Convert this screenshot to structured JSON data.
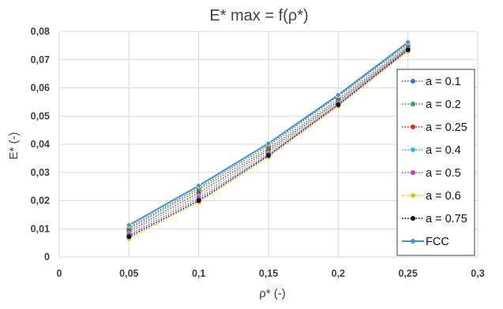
{
  "chart_data": {
    "type": "line",
    "title": "E* max = f(ρ*)",
    "xlabel": "ρ*  (-)",
    "ylabel": "E*  (-)",
    "xlim": [
      0,
      0.3
    ],
    "ylim": [
      0,
      0.08
    ],
    "grid": true,
    "legend_position": "right",
    "x_ticks": [
      {
        "value": 0,
        "label": "0"
      },
      {
        "value": 0.05,
        "label": "0,05"
      },
      {
        "value": 0.1,
        "label": "0,1"
      },
      {
        "value": 0.15,
        "label": "0,15"
      },
      {
        "value": 0.2,
        "label": "0,2"
      },
      {
        "value": 0.25,
        "label": "0,25"
      },
      {
        "value": 0.3,
        "label": "0,3"
      }
    ],
    "y_ticks": [
      {
        "value": 0,
        "label": "0"
      },
      {
        "value": 0.01,
        "label": "0,01"
      },
      {
        "value": 0.02,
        "label": "0,02"
      },
      {
        "value": 0.03,
        "label": "0,03"
      },
      {
        "value": 0.04,
        "label": "0,04"
      },
      {
        "value": 0.05,
        "label": "0,05"
      },
      {
        "value": 0.06,
        "label": "0,06"
      },
      {
        "value": 0.07,
        "label": "0,07"
      },
      {
        "value": 0.08,
        "label": "0,08"
      }
    ],
    "x": [
      0.05,
      0.1,
      0.15,
      0.2,
      0.25
    ],
    "series": [
      {
        "name": "a = 0.1",
        "color": "#4472c4",
        "dashed": true,
        "values": [
          0.0105,
          0.0245,
          0.0395,
          0.057,
          0.0755
        ]
      },
      {
        "name": "a = 0.2",
        "color": "#2fa84f",
        "dashed": true,
        "values": [
          0.01,
          0.0238,
          0.0385,
          0.056,
          0.0748
        ]
      },
      {
        "name": "a = 0.25",
        "color": "#e8281e",
        "dashed": true,
        "values": [
          0.0092,
          0.0228,
          0.0378,
          0.0553,
          0.0743
        ]
      },
      {
        "name": "a = 0.4",
        "color": "#33b5e5",
        "dashed": true,
        "values": [
          0.0085,
          0.0218,
          0.037,
          0.0548,
          0.074
        ]
      },
      {
        "name": "a = 0.5",
        "color": "#c838c8",
        "dashed": true,
        "values": [
          0.0078,
          0.0208,
          0.0363,
          0.0543,
          0.0737
        ]
      },
      {
        "name": "a = 0.6",
        "color": "#c8c81e",
        "dashed": true,
        "values": [
          0.0065,
          0.0195,
          0.0355,
          0.0535,
          0.073
        ]
      },
      {
        "name": "a = 0.75",
        "color": "#111111",
        "dashed": true,
        "values": [
          0.0072,
          0.02,
          0.036,
          0.054,
          0.0735
        ]
      },
      {
        "name": "FCC",
        "color": "#4a90c8",
        "dashed": false,
        "values": [
          0.0113,
          0.0253,
          0.0403,
          0.0575,
          0.0762
        ]
      }
    ]
  }
}
